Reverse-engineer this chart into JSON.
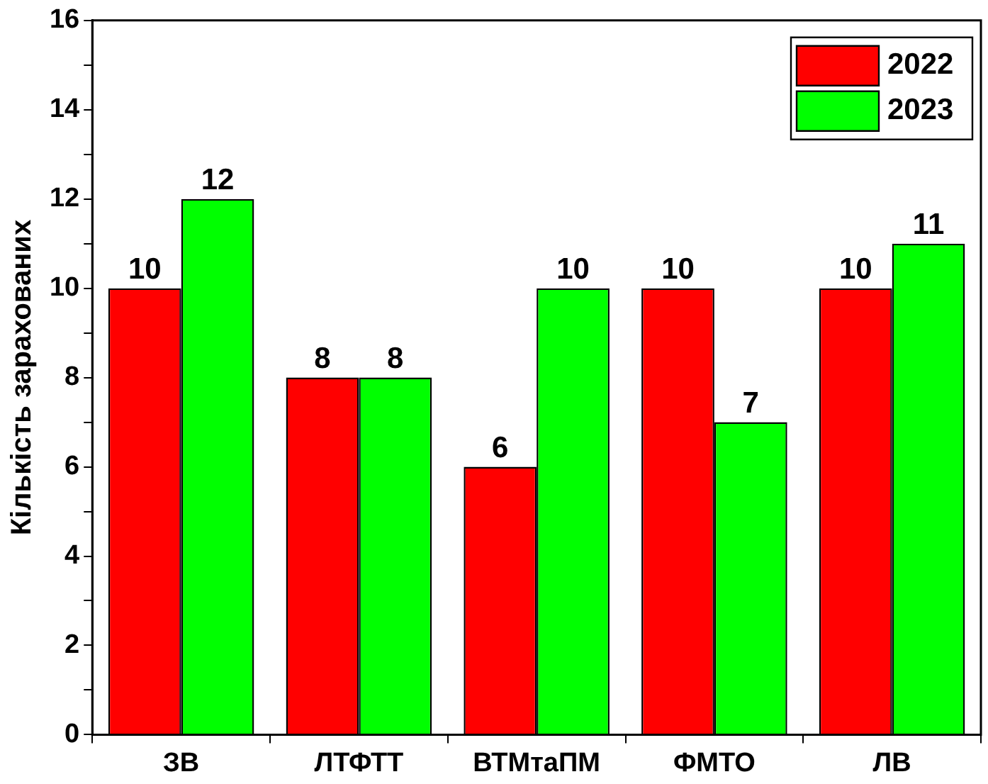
{
  "chart_data": {
    "type": "bar",
    "ylabel": "Кількість зарахованих",
    "categories": [
      "ЗВ",
      "ЛТФТТ",
      "ВТМтаПМ",
      "ФМТО",
      "ЛВ"
    ],
    "series": [
      {
        "name": "2022",
        "color": "#ff0000",
        "values": [
          10,
          8,
          6,
          10,
          10
        ]
      },
      {
        "name": "2023",
        "color": "#00ff00",
        "values": [
          12,
          8,
          10,
          7,
          11
        ]
      }
    ],
    "ylim": [
      0,
      16
    ],
    "yticks": [
      0,
      {
        "value": 1,
        "label": null
      },
      2,
      {
        "value": 3,
        "label": null
      },
      4,
      {
        "value": 5,
        "label": null
      },
      6,
      {
        "value": 7,
        "label": null
      },
      8,
      {
        "value": 9,
        "label": null
      },
      10,
      {
        "value": 11,
        "label": null
      },
      12,
      {
        "value": 13,
        "label": null
      },
      14,
      {
        "value": 15,
        "label": null
      },
      16
    ],
    "data_labels": true,
    "legend": "top right",
    "grid": false
  }
}
